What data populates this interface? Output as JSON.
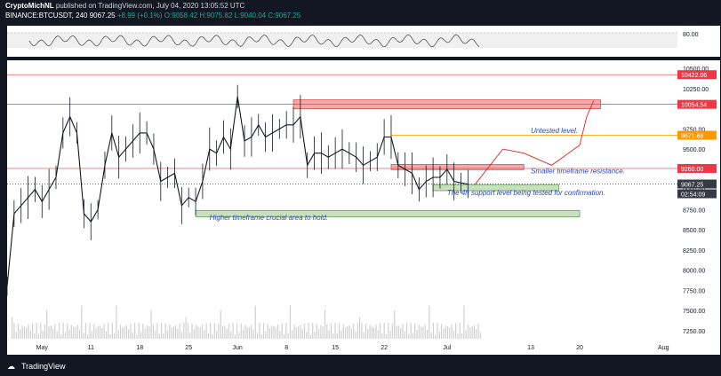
{
  "header": {
    "author": "CryptoMichNL",
    "published": "published on TradingView.com, July 04, 2020 13:05:52 UTC",
    "symbol": "BINANCE:BTCUSDT, 240",
    "last": "9067.25",
    "change": "+8.99 (+0.1%)",
    "ohlc": "O:9058.42 H:9075.82 L:9040.04 C:9067.25"
  },
  "footer": {
    "brand": "TradingView"
  },
  "chart_data": {
    "type": "line",
    "title": "",
    "xlabel": "",
    "ylabel": "",
    "x_ticks": [
      "May",
      "11",
      "18",
      "25",
      "Jun",
      "8",
      "15",
      "22",
      "Jul",
      "13",
      "20",
      "Aug"
    ],
    "y_ticks": [
      "10500.00",
      "10250.00",
      "9750.00",
      "9500.00",
      "9250.00",
      "9000.00",
      "8750.00",
      "8500.00",
      "8250.00",
      "8000.00",
      "7750.00",
      "7500.00",
      "7250.00"
    ],
    "ylim": [
      7150,
      10600
    ],
    "rsi_label": "80.00",
    "price_series": [
      [
        "2020-04-29",
        7800
      ],
      [
        "2020-04-30",
        8700
      ],
      [
        "2020-05-01",
        8800
      ],
      [
        "2020-05-02",
        8900
      ],
      [
        "2020-05-03",
        9000
      ],
      [
        "2020-05-04",
        8850
      ],
      [
        "2020-05-05",
        9000
      ],
      [
        "2020-05-06",
        9150
      ],
      [
        "2020-05-07",
        9700
      ],
      [
        "2020-05-08",
        9900
      ],
      [
        "2020-05-09",
        9700
      ],
      [
        "2020-05-10",
        8700
      ],
      [
        "2020-05-11",
        8600
      ],
      [
        "2020-05-12",
        8750
      ],
      [
        "2020-05-13",
        9300
      ],
      [
        "2020-05-14",
        9700
      ],
      [
        "2020-05-15",
        9400
      ],
      [
        "2020-05-16",
        9500
      ],
      [
        "2020-05-17",
        9600
      ],
      [
        "2020-05-18",
        9700
      ],
      [
        "2020-05-19",
        9700
      ],
      [
        "2020-05-20",
        9500
      ],
      [
        "2020-05-21",
        9100
      ],
      [
        "2020-05-22",
        9150
      ],
      [
        "2020-05-23",
        9200
      ],
      [
        "2020-05-24",
        8800
      ],
      [
        "2020-05-25",
        8900
      ],
      [
        "2020-05-26",
        8850
      ],
      [
        "2020-05-27",
        9100
      ],
      [
        "2020-05-28",
        9500
      ],
      [
        "2020-05-29",
        9450
      ],
      [
        "2020-05-30",
        9650
      ],
      [
        "2020-05-31",
        9500
      ],
      [
        "2020-06-01",
        10150
      ],
      [
        "2020-06-02",
        9600
      ],
      [
        "2020-06-03",
        9650
      ],
      [
        "2020-06-04",
        9800
      ],
      [
        "2020-06-05",
        9650
      ],
      [
        "2020-06-06",
        9700
      ],
      [
        "2020-06-07",
        9750
      ],
      [
        "2020-06-08",
        9800
      ],
      [
        "2020-06-09",
        9800
      ],
      [
        "2020-06-10",
        9900
      ],
      [
        "2020-06-11",
        9300
      ],
      [
        "2020-06-12",
        9450
      ],
      [
        "2020-06-13",
        9450
      ],
      [
        "2020-06-14",
        9400
      ],
      [
        "2020-06-15",
        9450
      ],
      [
        "2020-06-16",
        9500
      ],
      [
        "2020-06-17",
        9450
      ],
      [
        "2020-06-18",
        9400
      ],
      [
        "2020-06-19",
        9300
      ],
      [
        "2020-06-20",
        9350
      ],
      [
        "2020-06-21",
        9400
      ],
      [
        "2020-06-22",
        9650
      ],
      [
        "2020-06-23",
        9650
      ],
      [
        "2020-06-24",
        9300
      ],
      [
        "2020-06-25",
        9250
      ],
      [
        "2020-06-26",
        9200
      ],
      [
        "2020-06-27",
        9000
      ],
      [
        "2020-06-28",
        9100
      ],
      [
        "2020-06-29",
        9150
      ],
      [
        "2020-06-30",
        9150
      ],
      [
        "2020-07-01",
        9250
      ],
      [
        "2020-07-02",
        9100
      ],
      [
        "2020-07-03",
        9080
      ],
      [
        "2020-07-04",
        9067
      ]
    ],
    "volume_label": "",
    "horizontal_levels": [
      {
        "price": 10422.06,
        "label": "10422.06",
        "color": "#f23645"
      },
      {
        "price": 10054.54,
        "label": "10054.54",
        "color": "#f23645"
      },
      {
        "price": 9671.68,
        "label": "9671.68",
        "color": "#ff9800"
      },
      {
        "price": 9260.0,
        "label": "9260.00",
        "color": "#f23645"
      },
      {
        "price": 9067.25,
        "label": "9067.25",
        "color": "#363a45"
      }
    ],
    "countdown_label": "02:54:09",
    "zones": [
      {
        "kind": "resistance",
        "x0": "2020-06-09",
        "x1": "2020-07-23",
        "y0": 10000,
        "y1": 10110,
        "color": "#f7a8a8"
      },
      {
        "kind": "resistance",
        "x0": "2020-06-23",
        "x1": "2020-07-12",
        "y0": 9245,
        "y1": 9310,
        "color": "#f7a8a8"
      },
      {
        "kind": "support",
        "x0": "2020-06-29",
        "x1": "2020-07-17",
        "y0": 8985,
        "y1": 9060,
        "color": "#c8e0c0"
      },
      {
        "kind": "support",
        "x0": "2020-05-26",
        "x1": "2020-07-20",
        "y0": 8660,
        "y1": 8740,
        "color": "#c8e0c0"
      }
    ],
    "annotations": [
      {
        "text": "Untested level.",
        "x": "2020-07-13",
        "y": 9700
      },
      {
        "text": "Smaller timeframe resistance.",
        "x": "2020-07-13",
        "y": 9200
      },
      {
        "text": "The 4h support level being tested for confirmation.",
        "x": "2020-07-01",
        "y": 8930
      },
      {
        "text": "Higher timeframe crucial area to hold.",
        "x": "2020-05-28",
        "y": 8620
      }
    ],
    "projection": [
      [
        "2020-07-05",
        9060
      ],
      [
        "2020-07-09",
        9500
      ],
      [
        "2020-07-12",
        9450
      ],
      [
        "2020-07-16",
        9300
      ],
      [
        "2020-07-20",
        9550
      ],
      [
        "2020-07-21",
        9900
      ],
      [
        "2020-07-22",
        10100
      ]
    ],
    "colors": {
      "candle_up": "#26a69a",
      "candle_down": "#ef5350",
      "price_line": "#131722",
      "projection": "#e0261f",
      "annotation": "#2a47b8"
    }
  }
}
